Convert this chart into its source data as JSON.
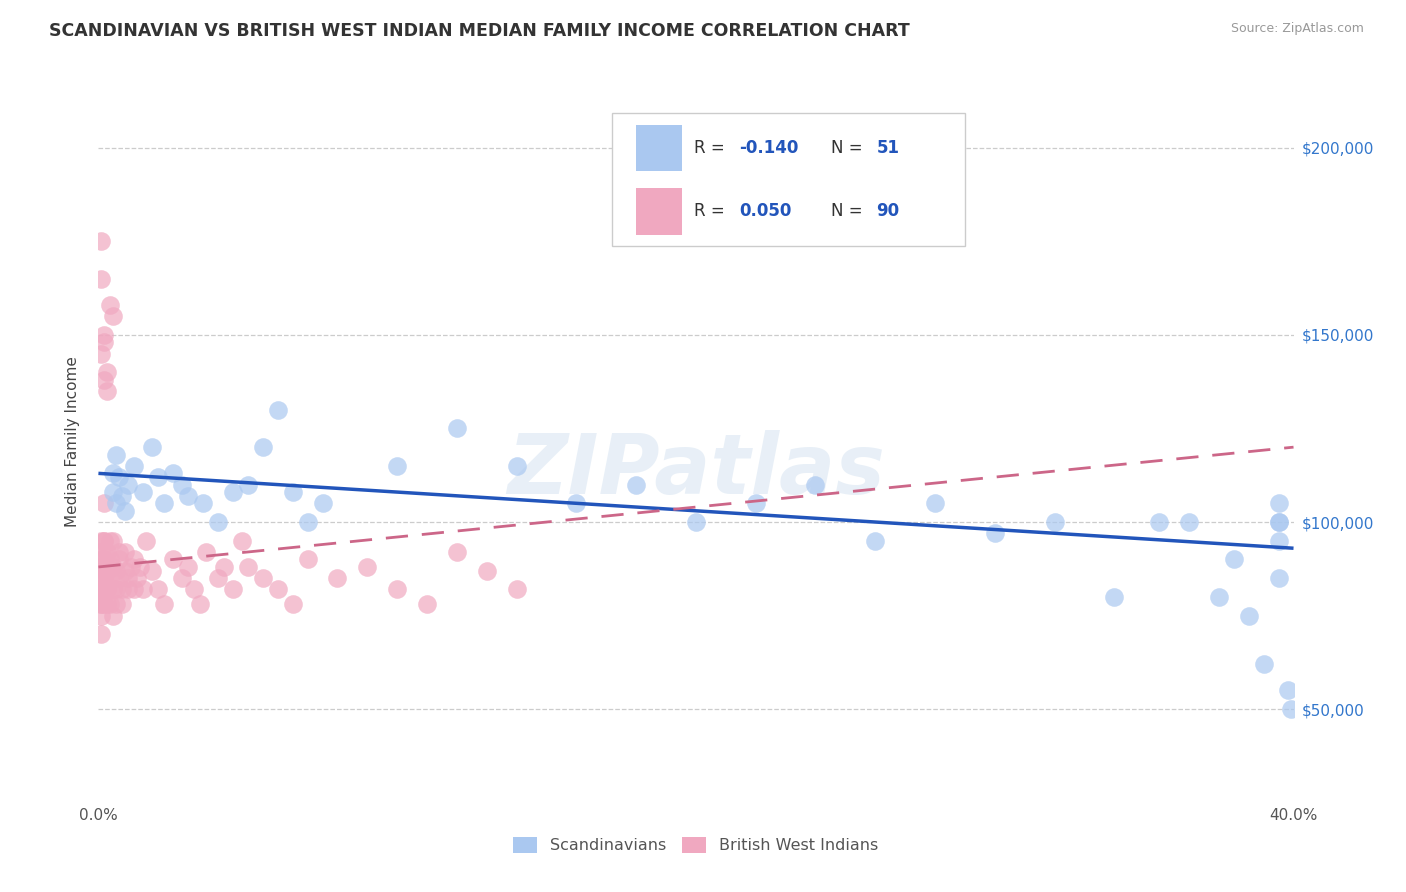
{
  "title": "SCANDINAVIAN VS BRITISH WEST INDIAN MEDIAN FAMILY INCOME CORRELATION CHART",
  "source": "Source: ZipAtlas.com",
  "ylabel": "Median Family Income",
  "yticks": [
    50000,
    100000,
    150000,
    200000
  ],
  "ytick_labels": [
    "$50,000",
    "$100,000",
    "$150,000",
    "$200,000"
  ],
  "xmin": 0.0,
  "xmax": 0.4,
  "ymin": 25000,
  "ymax": 218000,
  "legend_items": [
    {
      "label": "Scandinavians",
      "color": "#aac8f0",
      "R": -0.14,
      "N": 51
    },
    {
      "label": "British West Indians",
      "color": "#f0a8c0",
      "R": 0.05,
      "N": 90
    }
  ],
  "scandinavian_color": "#aac8f0",
  "bwi_color": "#f0a8c0",
  "trend_scand_color": "#2255bb",
  "trend_bwi_color": "#cc6688",
  "watermark": "ZIPatlas",
  "scand_x": [
    0.005,
    0.005,
    0.006,
    0.006,
    0.007,
    0.008,
    0.009,
    0.01,
    0.012,
    0.015,
    0.018,
    0.02,
    0.022,
    0.025,
    0.028,
    0.03,
    0.035,
    0.04,
    0.045,
    0.05,
    0.055,
    0.06,
    0.065,
    0.07,
    0.075,
    0.1,
    0.12,
    0.14,
    0.16,
    0.18,
    0.2,
    0.22,
    0.24,
    0.26,
    0.28,
    0.3,
    0.32,
    0.34,
    0.355,
    0.365,
    0.375,
    0.38,
    0.385,
    0.39,
    0.395,
    0.395,
    0.395,
    0.395,
    0.395,
    0.398,
    0.399
  ],
  "scand_y": [
    113000,
    108000,
    118000,
    105000,
    112000,
    107000,
    103000,
    110000,
    115000,
    108000,
    120000,
    112000,
    105000,
    113000,
    110000,
    107000,
    105000,
    100000,
    108000,
    110000,
    120000,
    130000,
    108000,
    100000,
    105000,
    115000,
    125000,
    115000,
    105000,
    110000,
    100000,
    105000,
    110000,
    95000,
    105000,
    97000,
    100000,
    80000,
    100000,
    100000,
    80000,
    90000,
    75000,
    62000,
    100000,
    95000,
    105000,
    100000,
    85000,
    55000,
    50000
  ],
  "bwi_x": [
    0.001,
    0.001,
    0.001,
    0.001,
    0.001,
    0.001,
    0.001,
    0.001,
    0.001,
    0.001,
    0.001,
    0.001,
    0.001,
    0.001,
    0.002,
    0.002,
    0.002,
    0.002,
    0.002,
    0.002,
    0.002,
    0.002,
    0.003,
    0.003,
    0.003,
    0.003,
    0.003,
    0.003,
    0.004,
    0.004,
    0.004,
    0.004,
    0.005,
    0.005,
    0.005,
    0.005,
    0.006,
    0.006,
    0.006,
    0.007,
    0.007,
    0.007,
    0.008,
    0.008,
    0.009,
    0.009,
    0.01,
    0.01,
    0.011,
    0.012,
    0.012,
    0.013,
    0.014,
    0.015,
    0.016,
    0.018,
    0.02,
    0.022,
    0.025,
    0.028,
    0.03,
    0.032,
    0.034,
    0.036,
    0.04,
    0.042,
    0.045,
    0.048,
    0.05,
    0.055,
    0.06,
    0.065,
    0.07,
    0.08,
    0.09,
    0.1,
    0.11,
    0.12,
    0.13,
    0.14,
    0.001,
    0.001,
    0.002,
    0.003,
    0.004,
    0.005,
    0.002,
    0.003,
    0.001,
    0.002
  ],
  "bwi_y": [
    90000,
    85000,
    78000,
    82000,
    75000,
    88000,
    92000,
    80000,
    70000,
    95000,
    85000,
    78000,
    82000,
    88000,
    95000,
    87000,
    82000,
    78000,
    90000,
    85000,
    105000,
    95000,
    88000,
    82000,
    78000,
    92000,
    87000,
    82000,
    95000,
    78000,
    90000,
    85000,
    75000,
    82000,
    88000,
    95000,
    87000,
    82000,
    78000,
    90000,
    85000,
    92000,
    82000,
    78000,
    87000,
    92000,
    82000,
    85000,
    88000,
    82000,
    90000,
    85000,
    88000,
    82000,
    95000,
    87000,
    82000,
    78000,
    90000,
    85000,
    88000,
    82000,
    78000,
    92000,
    85000,
    88000,
    82000,
    95000,
    88000,
    85000,
    82000,
    78000,
    90000,
    85000,
    88000,
    82000,
    78000,
    92000,
    87000,
    82000,
    165000,
    175000,
    150000,
    140000,
    158000,
    155000,
    138000,
    135000,
    145000,
    148000
  ]
}
